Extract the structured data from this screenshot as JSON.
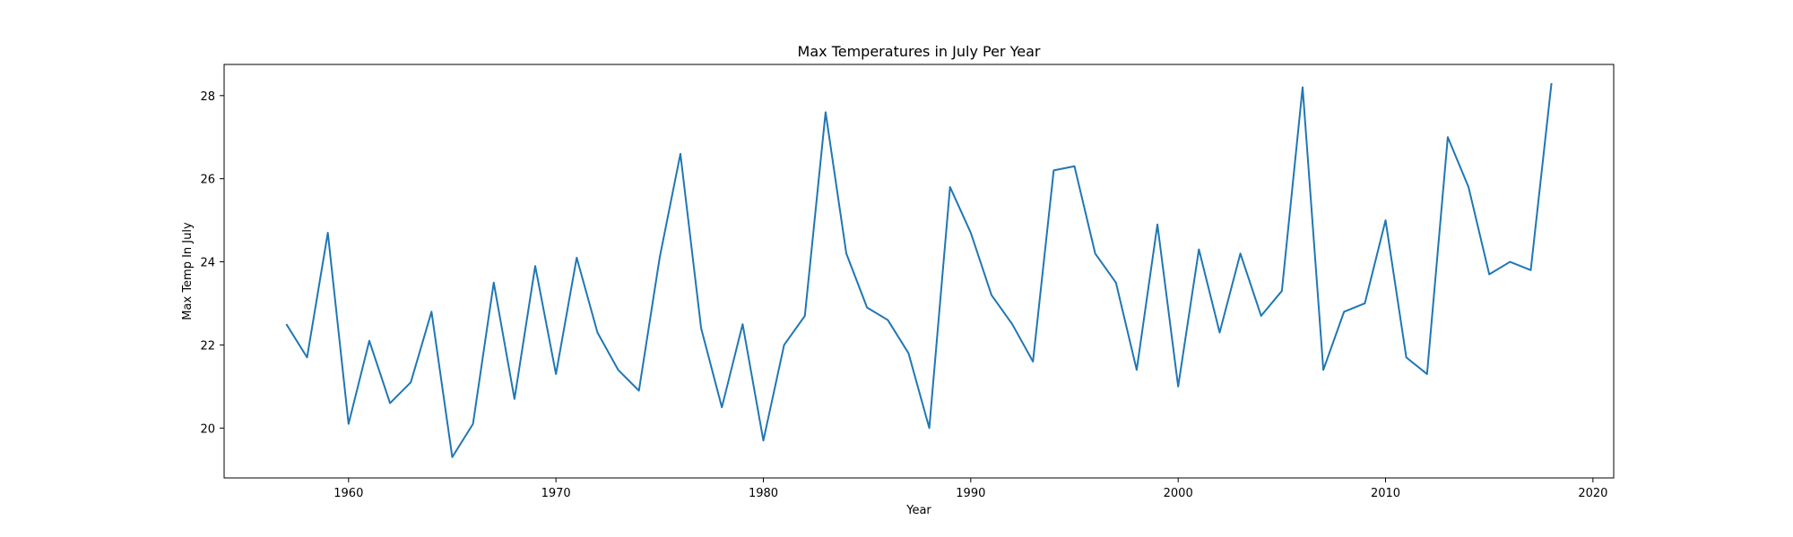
{
  "chart_data": {
    "type": "line",
    "title": "Max Temperatures in July Per Year",
    "xlabel": "Year",
    "ylabel": "Max Temp In July",
    "xlim": [
      1954,
      2021
    ],
    "ylim": [
      18.8,
      28.75
    ],
    "xticks": [
      1960,
      1970,
      1980,
      1990,
      2000,
      2010,
      2020
    ],
    "yticks": [
      20,
      22,
      24,
      26,
      28
    ],
    "grid": false,
    "series": [
      {
        "color": "#1f77b4",
        "x": [
          1957,
          1958,
          1959,
          1960,
          1961,
          1962,
          1963,
          1964,
          1965,
          1966,
          1967,
          1968,
          1969,
          1970,
          1971,
          1972,
          1973,
          1974,
          1975,
          1976,
          1977,
          1978,
          1979,
          1980,
          1981,
          1982,
          1983,
          1984,
          1985,
          1986,
          1987,
          1988,
          1989,
          1990,
          1991,
          1992,
          1993,
          1994,
          1995,
          1996,
          1997,
          1998,
          1999,
          2000,
          2001,
          2002,
          2003,
          2004,
          2005,
          2006,
          2007,
          2008,
          2009,
          2010,
          2011,
          2012,
          2013,
          2014,
          2015,
          2016,
          2017,
          2018
        ],
        "y": [
          22.5,
          21.7,
          24.7,
          20.1,
          22.1,
          20.6,
          21.1,
          22.8,
          19.3,
          20.1,
          23.5,
          20.7,
          23.9,
          21.3,
          24.1,
          22.3,
          21.4,
          20.9,
          24.1,
          26.6,
          22.4,
          20.5,
          22.5,
          19.7,
          22.0,
          22.7,
          27.6,
          24.2,
          22.9,
          22.6,
          21.8,
          20.0,
          25.8,
          24.7,
          23.2,
          22.5,
          21.6,
          26.2,
          26.3,
          24.2,
          23.5,
          21.4,
          24.9,
          21.0,
          24.3,
          22.3,
          24.2,
          22.7,
          23.3,
          28.2,
          21.4,
          22.8,
          23.0,
          25.0,
          21.7,
          21.3,
          27.0,
          25.8,
          23.7,
          24.0,
          23.8,
          28.3
        ]
      }
    ]
  }
}
